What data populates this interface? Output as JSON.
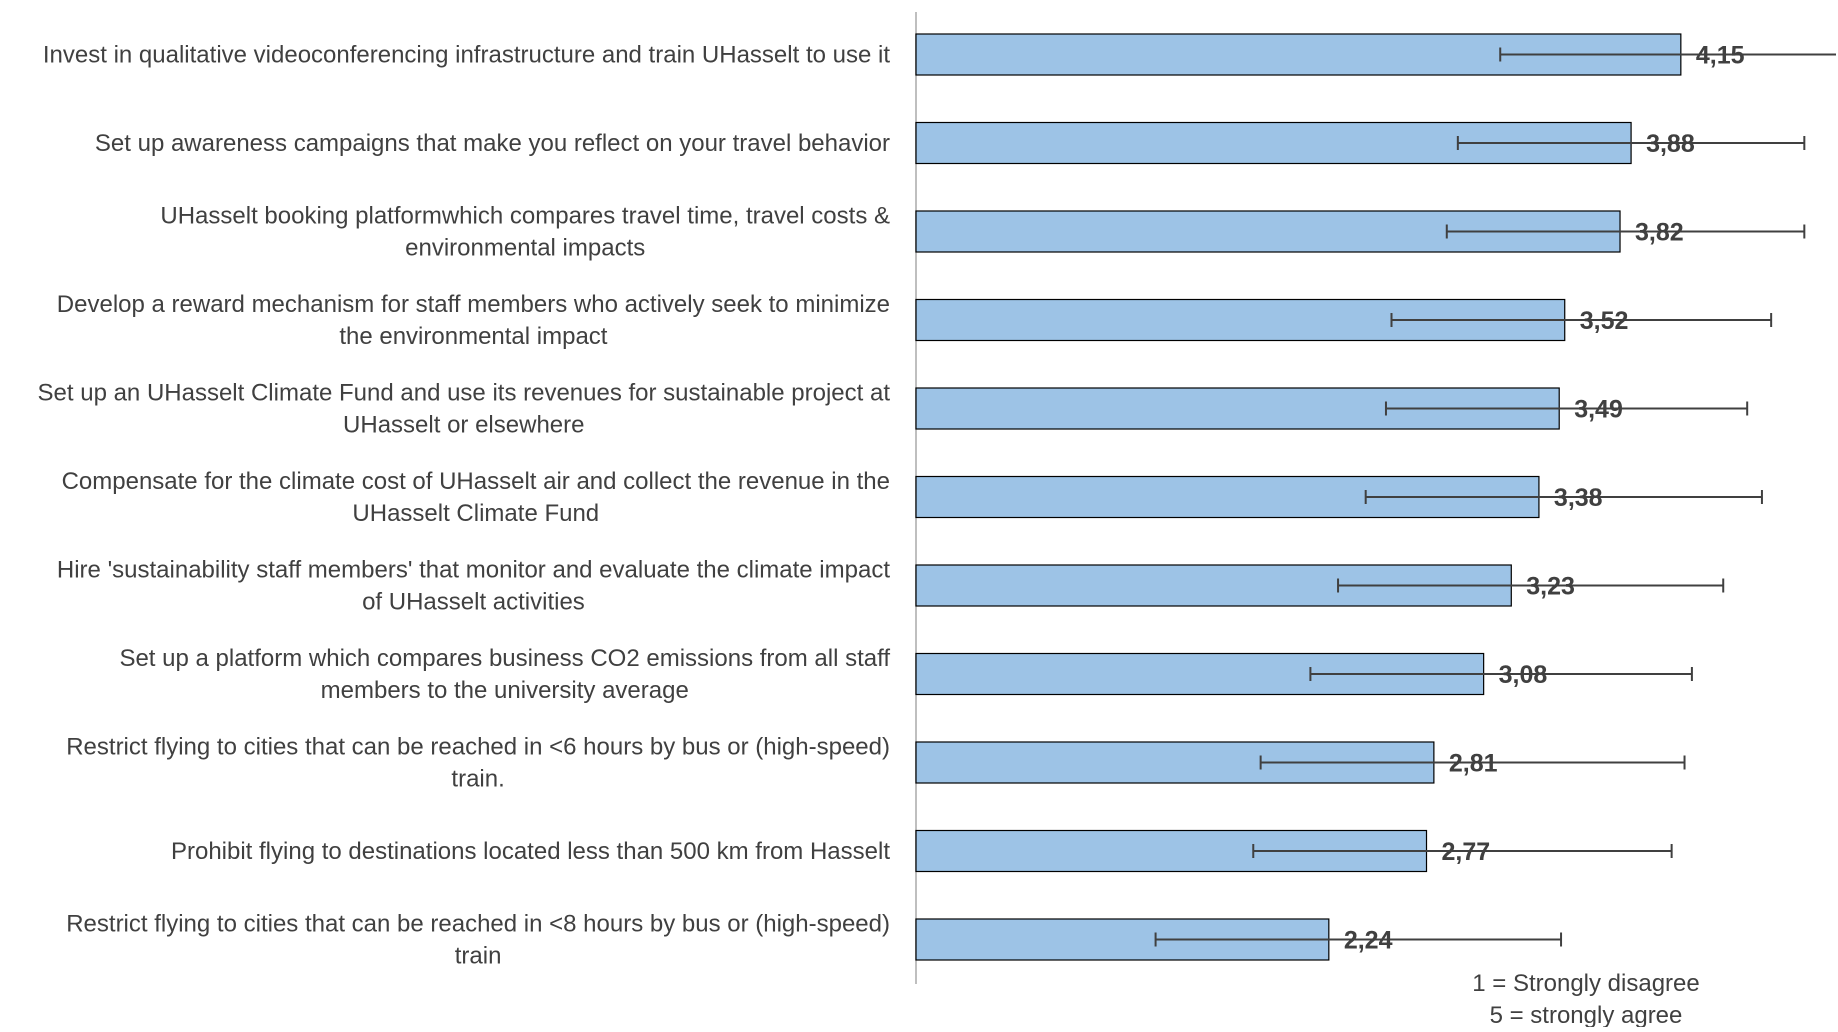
{
  "chart_data": {
    "type": "bar",
    "orientation": "horizontal",
    "categories": [
      [
        "Invest in qualitative videoconferencing infrastructure and train UHasselt to use it"
      ],
      [
        "Set up awareness campaigns that make you reflect on your travel behavior"
      ],
      [
        "UHasselt booking platformwhich compares travel time, travel costs &",
        "environmental impacts"
      ],
      [
        "Develop a reward mechanism for staff members who actively seek to minimize",
        "the environmental impact"
      ],
      [
        "Set up an UHasselt Climate Fund and use its revenues for sustainable project at",
        "UHasselt or elsewhere"
      ],
      [
        "Compensate for the climate cost of UHasselt air and collect the revenue in the",
        "UHasselt Climate Fund"
      ],
      [
        "Hire 'sustainability staff members' that monitor and evaluate the climate impact",
        "of UHasselt activities"
      ],
      [
        "Set up a platform which compares business CO2 emissions from all staff",
        "members to the university average"
      ],
      [
        "Restrict flying to cities that can be reached in <6 hours by bus or (high-speed)",
        "train."
      ],
      [
        "Prohibit flying to destinations located less than 500 km from Hasselt"
      ],
      [
        "Restrict flying to cities that can be reached in <8 hours by bus or (high-speed)",
        "train"
      ]
    ],
    "values": [
      4.15,
      3.88,
      3.82,
      3.52,
      3.49,
      3.38,
      3.23,
      3.08,
      2.81,
      2.77,
      2.24
    ],
    "value_labels": [
      "4,15",
      "3,88",
      "3,82",
      "3,52",
      "3,49",
      "3,38",
      "3,23",
      "3,08",
      "2,81",
      "2,77",
      "2,24"
    ],
    "error_low": [
      3.17,
      2.94,
      2.88,
      2.58,
      2.55,
      2.44,
      2.29,
      2.14,
      1.87,
      1.83,
      1.3
    ],
    "error_high": [
      5.13,
      4.82,
      4.82,
      4.64,
      4.51,
      4.59,
      4.38,
      4.21,
      4.17,
      4.1,
      3.5
    ],
    "xlim": [
      0,
      5
    ],
    "grid": false,
    "legend": "none",
    "bar_color": "#9dc3e6",
    "bar_stroke": "#000000",
    "error_bar_color": "#404040",
    "note": [
      "1 = Strongly disagree",
      "5 = strongly agree"
    ]
  }
}
